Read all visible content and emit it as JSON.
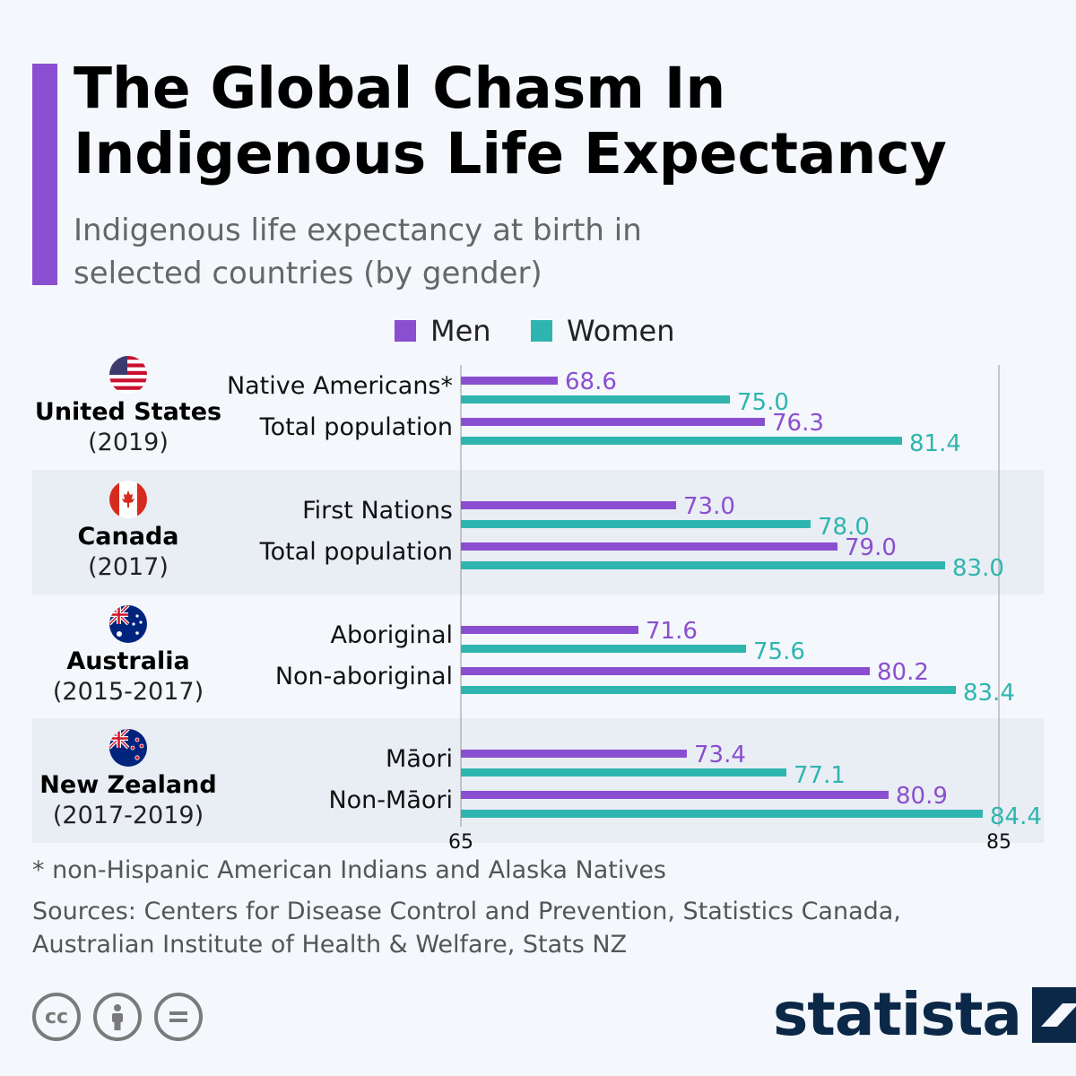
{
  "header": {
    "title": "The Global Chasm In Indigenous Life Expectancy",
    "subtitle": "Indigenous life expectancy at birth in selected countries (by gender)"
  },
  "colors": {
    "accent": "#8a4fd0",
    "men": "#8a4fd0",
    "women": "#2fb5b0",
    "band": "#e9edf4",
    "brand": "#0c2848"
  },
  "legend": [
    {
      "label": "Men",
      "color": "#8a4fd0"
    },
    {
      "label": "Women",
      "color": "#2fb5b0"
    }
  ],
  "countries": [
    {
      "name": "United States",
      "period": "(2019)",
      "flag": "us-flag-icon"
    },
    {
      "name": "Canada",
      "period": "(2017)",
      "flag": "canada-flag-icon"
    },
    {
      "name": "Australia",
      "period": "(2015-2017)",
      "flag": "australia-flag-icon"
    },
    {
      "name": "New Zealand",
      "period": "(2017-2019)",
      "flag": "new-zealand-flag-icon"
    }
  ],
  "chart_data": {
    "type": "bar",
    "orientation": "horizontal",
    "xlim": [
      65,
      85
    ],
    "ticks": [
      65,
      85
    ],
    "grid": true,
    "legend_position": "top",
    "groups": [
      {
        "country": "United States",
        "categories": [
          "Native Americans*",
          "Total population"
        ]
      },
      {
        "country": "Canada",
        "categories": [
          "First Nations",
          "Total population"
        ]
      },
      {
        "country": "Australia",
        "categories": [
          "Aboriginal",
          "Non-aboriginal"
        ]
      },
      {
        "country": "New Zealand",
        "categories": [
          "Māori",
          "Non-Māori"
        ]
      }
    ],
    "series": [
      {
        "name": "Men",
        "values": [
          68.6,
          76.3,
          73.0,
          79.0,
          71.6,
          80.2,
          73.4,
          80.9
        ]
      },
      {
        "name": "Women",
        "values": [
          75.0,
          81.4,
          78.0,
          83.0,
          75.6,
          83.4,
          77.1,
          84.4
        ]
      }
    ],
    "value_labels": {
      "Men": [
        "68.6",
        "76.3",
        "73.0",
        "79.0",
        "71.6",
        "80.2",
        "73.4",
        "80.9"
      ],
      "Women": [
        "75.0",
        "81.4",
        "78.0",
        "83.0",
        "75.6",
        "83.4",
        "77.1",
        "84.4"
      ]
    }
  },
  "footer": {
    "footnote": "* non-Hispanic American Indians and Alaska Natives",
    "sources_line1": "Sources: Centers for Disease Control and Prevention, Statistics Canada,",
    "sources_line2": "Australian Institute of Health & Welfare, Stats NZ",
    "cc_icons": [
      "cc-icon",
      "by-icon",
      "nd-icon"
    ],
    "cc_label": "cc",
    "brand": "statista"
  }
}
